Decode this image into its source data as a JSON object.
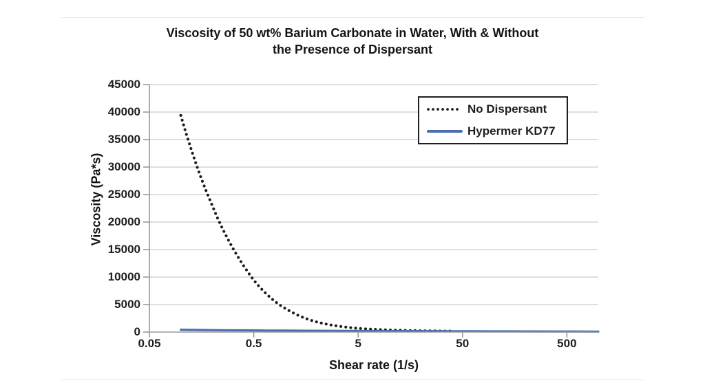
{
  "colors": {
    "no_dispersant_series": "#1c1c1c",
    "hypermer_series": "#4a6dac",
    "gridline": "#bdbdbd",
    "axis": "#9a9a9a",
    "text": "#1f1f1f",
    "legend_border": "#1f1f1f",
    "background": "#ffffff"
  },
  "chart_data": {
    "type": "line",
    "title": "Viscosity of 50 wt% Barium Carbonate in Water, With & Without the Presence of Dispersant",
    "title_lines": [
      "Viscosity of 50 wt%  Barium Carbonate in Water, With & Without",
      "the Presence of Dispersant"
    ],
    "xlabel": "Shear rate (1/s)",
    "ylabel": "Viscosity (Pa*s)",
    "x_scale": "log",
    "xlim": [
      0.05,
      1000
    ],
    "ylim": [
      0,
      45000
    ],
    "x_ticks": [
      0.05,
      0.5,
      5,
      50,
      500
    ],
    "x_tick_labels": [
      "0.05",
      "0.5",
      "5",
      "50",
      "500"
    ],
    "y_ticks": [
      0,
      5000,
      10000,
      15000,
      20000,
      25000,
      30000,
      35000,
      40000,
      45000
    ],
    "grid": "horizontal-only",
    "legend_position": "top-right-inside",
    "series": [
      {
        "name": "No Dispersant",
        "style": "dotted",
        "color": "#1c1c1c",
        "points": [
          [
            0.1,
            39400
          ],
          [
            0.112,
            36200
          ],
          [
            0.126,
            33200
          ],
          [
            0.141,
            30400
          ],
          [
            0.158,
            27800
          ],
          [
            0.178,
            25300
          ],
          [
            0.2,
            23000
          ],
          [
            0.224,
            20800
          ],
          [
            0.251,
            18800
          ],
          [
            0.282,
            16900
          ],
          [
            0.316,
            15200
          ],
          [
            0.355,
            13600
          ],
          [
            0.398,
            12100
          ],
          [
            0.447,
            10700
          ],
          [
            0.501,
            9400
          ],
          [
            0.562,
            8300
          ],
          [
            0.631,
            7300
          ],
          [
            0.708,
            6400
          ],
          [
            0.794,
            5600
          ],
          [
            0.891,
            4900
          ],
          [
            1.0,
            4300
          ],
          [
            1.122,
            3750
          ],
          [
            1.259,
            3250
          ],
          [
            1.413,
            2820
          ],
          [
            1.585,
            2450
          ],
          [
            1.778,
            2130
          ],
          [
            1.995,
            1850
          ],
          [
            2.239,
            1620
          ],
          [
            2.512,
            1420
          ],
          [
            2.818,
            1250
          ],
          [
            3.162,
            1100
          ],
          [
            3.548,
            970
          ],
          [
            3.981,
            860
          ],
          [
            4.467,
            760
          ],
          [
            5.012,
            680
          ],
          [
            5.623,
            610
          ],
          [
            6.31,
            550
          ],
          [
            7.079,
            500
          ],
          [
            7.943,
            450
          ],
          [
            8.913,
            410
          ],
          [
            10,
            380
          ],
          [
            11.22,
            350
          ],
          [
            12.589,
            320
          ],
          [
            14.125,
            300
          ],
          [
            15.849,
            280
          ],
          [
            17.783,
            260
          ],
          [
            19.953,
            240
          ],
          [
            22.387,
            230
          ],
          [
            25.119,
            210
          ],
          [
            28.184,
            200
          ],
          [
            31.623,
            190
          ],
          [
            35.481,
            180
          ],
          [
            39.811,
            170
          ]
        ]
      },
      {
        "name": "Hypermer KD77",
        "style": "solid",
        "color": "#4a6dac",
        "points": [
          [
            0.1,
            420
          ],
          [
            0.158,
            380
          ],
          [
            0.251,
            340
          ],
          [
            0.398,
            310
          ],
          [
            0.631,
            280
          ],
          [
            1.0,
            260
          ],
          [
            1.585,
            240
          ],
          [
            2.512,
            220
          ],
          [
            3.981,
            200
          ],
          [
            6.31,
            190
          ],
          [
            10,
            180
          ],
          [
            15.849,
            170
          ],
          [
            25.119,
            160
          ],
          [
            39.811,
            150
          ],
          [
            63.096,
            140
          ],
          [
            100,
            130
          ],
          [
            158.489,
            120
          ],
          [
            251.189,
            110
          ],
          [
            398.107,
            100
          ],
          [
            630.957,
            95
          ],
          [
            1000,
            90
          ]
        ]
      }
    ]
  }
}
